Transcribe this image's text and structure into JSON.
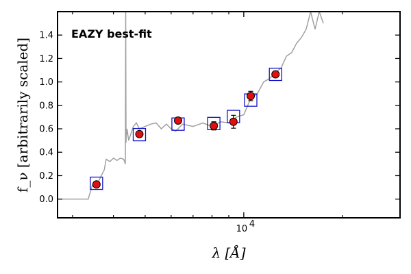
{
  "chart_data": {
    "type": "scatter",
    "annotation": "EAZY best-fit",
    "xlabel": "λ [Å]",
    "ylabel": "f_ν [arbitrarily scaled]",
    "x_scale": "log",
    "xlim": [
      2700,
      30000
    ],
    "ylim": [
      -0.16,
      1.6
    ],
    "y_ticks": [
      0.0,
      0.2,
      0.4,
      0.6,
      0.8,
      1.0,
      1.2,
      1.4
    ],
    "y_tick_labels": [
      "0.0",
      "0.2",
      "0.4",
      "0.6",
      "0.8",
      "1.0",
      "1.2",
      "1.4"
    ],
    "x_major_tick": 10000,
    "x_tick_label": "10",
    "x_tick_exponent": "4",
    "x_minor_ticks": [
      3000,
      4000,
      5000,
      6000,
      7000,
      8000,
      9000,
      20000,
      30000
    ],
    "colors": {
      "observed": "#e01010",
      "model_photometry": "#1010cc",
      "template": "#a0a0a0",
      "annotation": "#ff0000"
    },
    "observed": {
      "x": [
        3550,
        4800,
        6300,
        8100,
        9300,
        10500,
        12500
      ],
      "y": [
        0.125,
        0.555,
        0.67,
        0.625,
        0.66,
        0.88,
        1.065
      ],
      "yerr": [
        0.015,
        0.02,
        0.025,
        0.035,
        0.055,
        0.04,
        0.025
      ]
    },
    "model_photometry": {
      "x": [
        3550,
        4800,
        6300,
        8100,
        9300,
        10500,
        12500
      ],
      "y": [
        0.135,
        0.55,
        0.64,
        0.645,
        0.705,
        0.845,
        1.065
      ]
    },
    "template": {
      "x": [
        2700,
        3350,
        3450,
        3600,
        3750,
        3800,
        3900,
        4000,
        4100,
        4200,
        4300,
        4350,
        4360,
        4370,
        4380,
        4390,
        4400,
        4450,
        4600,
        4700,
        4800,
        5000,
        5200,
        5400,
        5600,
        5800,
        6000,
        6200,
        6500,
        7000,
        7500,
        8000,
        8500,
        9000,
        9500,
        10000,
        10500,
        11000,
        11500,
        12000,
        12500,
        13000,
        13500,
        14000,
        14500,
        15000,
        15500,
        16000,
        16500,
        17000,
        17500
      ],
      "y": [
        0.0,
        0.0,
        0.12,
        0.15,
        0.25,
        0.34,
        0.32,
        0.35,
        0.33,
        0.35,
        0.34,
        0.3,
        1.6,
        0.48,
        0.6,
        0.55,
        0.6,
        0.5,
        0.62,
        0.65,
        0.6,
        0.62,
        0.64,
        0.65,
        0.6,
        0.64,
        0.6,
        0.58,
        0.64,
        0.62,
        0.65,
        0.62,
        0.66,
        0.65,
        0.7,
        0.72,
        0.86,
        0.9,
        1.0,
        1.03,
        1.08,
        1.12,
        1.22,
        1.25,
        1.33,
        1.38,
        1.45,
        1.6,
        1.45,
        1.6,
        1.5
      ]
    }
  }
}
